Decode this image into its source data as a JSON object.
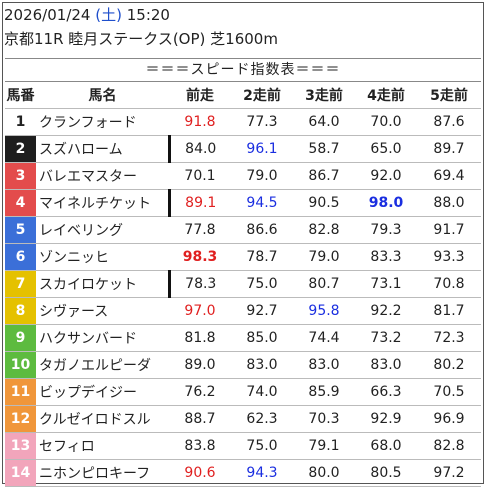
{
  "header": {
    "date": "2026/01/24",
    "weekday": "(土)",
    "time": "15:20",
    "race": "京都11R 睦月ステークス(OP) 芝1600m"
  },
  "table_title": "＝＝＝スピード指数表＝＝＝",
  "columns": [
    "馬番",
    "馬名",
    "前走",
    "2走前",
    "3走前",
    "4走前",
    "5走前"
  ],
  "colors": {
    "gate_1": "#ffffff",
    "gate_2": "#1e1e1e",
    "gate_3": "#e34c4c",
    "gate_4": "#e34c4c",
    "gate_5": "#3b6fd8",
    "gate_6": "#3b6fd8",
    "gate_7": "#e5c100",
    "gate_8": "#e5c100",
    "gate_9": "#5dbb3f",
    "gate_10": "#5dbb3f",
    "gate_11": "#f0963a",
    "gate_12": "#f0963a",
    "gate_13": "#f2a5bb",
    "gate_14": "#f2a5bb",
    "highlight_red": "#e02020",
    "highlight_blue": "#1a2ee0"
  },
  "rows": [
    {
      "no": "1",
      "name": "クランフォード",
      "v": [
        "91.8",
        "77.3",
        "64.0",
        "70.0",
        "87.6"
      ],
      "style": [
        "red",
        "",
        "",
        "",
        ""
      ],
      "sep": 0
    },
    {
      "no": "2",
      "name": "スズハローム",
      "v": [
        "84.0",
        "96.1",
        "58.7",
        "65.0",
        "89.7"
      ],
      "style": [
        "",
        "blue",
        "",
        "",
        ""
      ],
      "sep": 1
    },
    {
      "no": "3",
      "name": "バレエマスター",
      "v": [
        "70.1",
        "79.0",
        "86.7",
        "92.0",
        "69.4"
      ],
      "style": [
        "",
        "",
        "",
        "",
        ""
      ],
      "sep": 0
    },
    {
      "no": "4",
      "name": "マイネルチケット",
      "v": [
        "89.1",
        "94.5",
        "90.5",
        "98.0",
        "88.0"
      ],
      "style": [
        "red",
        "blue",
        "",
        "bluebold",
        ""
      ],
      "sep": 1
    },
    {
      "no": "5",
      "name": "レイベリング",
      "v": [
        "77.8",
        "86.6",
        "82.8",
        "79.3",
        "91.7"
      ],
      "style": [
        "",
        "",
        "",
        "",
        ""
      ],
      "sep": 0
    },
    {
      "no": "6",
      "name": "ゾンニッヒ",
      "v": [
        "98.3",
        "78.7",
        "79.0",
        "83.3",
        "93.3"
      ],
      "style": [
        "redbold",
        "",
        "",
        "",
        ""
      ],
      "sep": 0
    },
    {
      "no": "7",
      "name": "スカイロケット",
      "v": [
        "78.3",
        "75.0",
        "80.7",
        "73.1",
        "70.8"
      ],
      "style": [
        "",
        "",
        "",
        "",
        ""
      ],
      "sep": 1
    },
    {
      "no": "8",
      "name": "シヴァース",
      "v": [
        "97.0",
        "92.7",
        "95.8",
        "92.2",
        "81.7"
      ],
      "style": [
        "red",
        "",
        "blue",
        "",
        ""
      ],
      "sep": 0
    },
    {
      "no": "9",
      "name": "ハクサンバード",
      "v": [
        "81.8",
        "85.0",
        "74.4",
        "73.2",
        "72.3"
      ],
      "style": [
        "",
        "",
        "",
        "",
        ""
      ],
      "sep": 0
    },
    {
      "no": "10",
      "name": "タガノエルピーダ",
      "v": [
        "89.0",
        "83.0",
        "83.0",
        "83.0",
        "80.2"
      ],
      "style": [
        "",
        "",
        "",
        "",
        ""
      ],
      "sep": 0
    },
    {
      "no": "11",
      "name": "ビップデイジー",
      "v": [
        "76.2",
        "74.0",
        "85.9",
        "66.3",
        "70.5"
      ],
      "style": [
        "",
        "",
        "",
        "",
        ""
      ],
      "sep": 0
    },
    {
      "no": "12",
      "name": "クルゼイロドスル",
      "v": [
        "88.7",
        "62.3",
        "70.3",
        "92.9",
        "96.9"
      ],
      "style": [
        "",
        "",
        "",
        "",
        ""
      ],
      "sep": 0
    },
    {
      "no": "13",
      "name": "セフィロ",
      "v": [
        "83.8",
        "75.0",
        "79.1",
        "68.0",
        "82.8"
      ],
      "style": [
        "",
        "",
        "",
        "",
        ""
      ],
      "sep": 0
    },
    {
      "no": "14",
      "name": "ニホンピロキーフ",
      "v": [
        "90.6",
        "94.3",
        "80.0",
        "80.5",
        "97.2"
      ],
      "style": [
        "red",
        "blue",
        "",
        "",
        ""
      ],
      "sep": 0
    }
  ]
}
